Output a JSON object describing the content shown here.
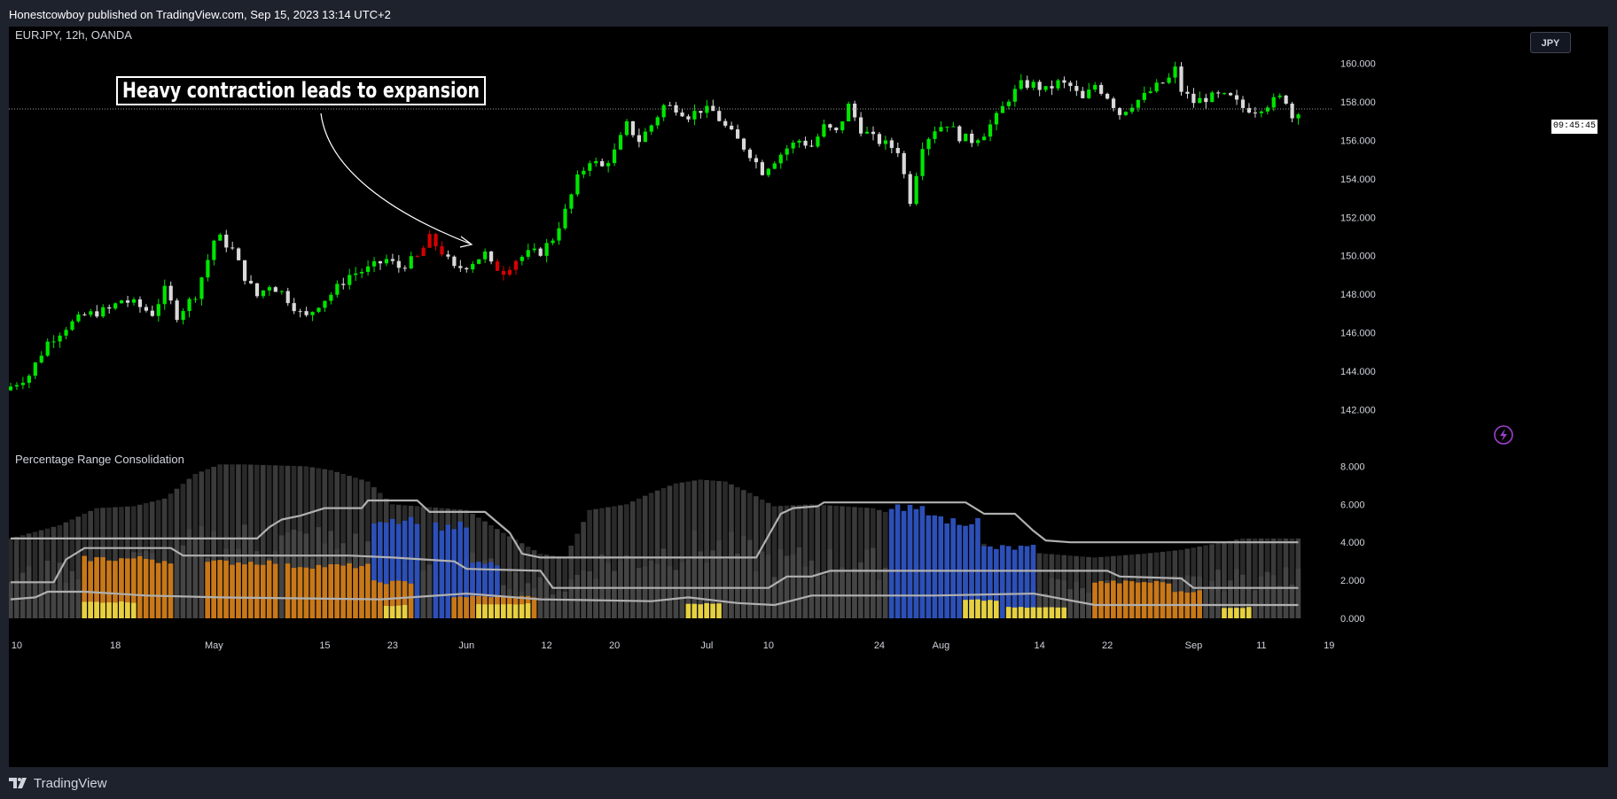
{
  "header": {
    "published": "Honestcowboy published on TradingView.com, Sep 15, 2023 13:14 UTC+2"
  },
  "footer": {
    "brand": "TradingView"
  },
  "chart": {
    "symbol_label": "EURJPY, 12h, OANDA",
    "currency_button": "JPY",
    "last_price_time": "09:45:45",
    "annotation": "Heavy contraction leads to expansion",
    "indicator_label": "Percentage Range Consolidation"
  },
  "colors": {
    "up": "#00e600",
    "down": "#d9d9d9",
    "highlight": "#d60000",
    "gray_bar": "#3a3a3a",
    "gray_bar_dark": "#2a2a2a",
    "blue": "#2c4fb8",
    "orange": "#c87818",
    "yellow": "#e6d040",
    "line": "#b0b0b0"
  },
  "chart_data": {
    "type": "candlestick",
    "title": "EURJPY, 12h, OANDA",
    "price_axis": {
      "ticks": [
        "160.000",
        "158.000",
        "156.000",
        "154.000",
        "152.000",
        "150.000",
        "148.000",
        "146.000",
        "144.000",
        "142.000"
      ],
      "range": [
        141.0,
        161.0
      ]
    },
    "indicator_axis": {
      "ticks": [
        "8.000",
        "6.000",
        "4.000",
        "2.000",
        "0.000"
      ],
      "range": [
        0,
        8.3
      ]
    },
    "time_axis": {
      "ticks": [
        {
          "label": "10",
          "i": 1
        },
        {
          "label": "18",
          "i": 17
        },
        {
          "label": "May",
          "i": 33
        },
        {
          "label": "15",
          "i": 51
        },
        {
          "label": "23",
          "i": 62
        },
        {
          "label": "Jun",
          "i": 74
        },
        {
          "label": "12",
          "i": 87
        },
        {
          "label": "20",
          "i": 98
        },
        {
          "label": "Jul",
          "i": 113
        },
        {
          "label": "10",
          "i": 123
        },
        {
          "label": "24",
          "i": 141
        },
        {
          "label": "Aug",
          "i": 151
        },
        {
          "label": "14",
          "i": 167
        },
        {
          "label": "22",
          "i": 178
        },
        {
          "label": "Sep",
          "i": 192
        },
        {
          "label": "11",
          "i": 203
        },
        {
          "label": "19",
          "i": 214
        }
      ],
      "candle_count": 210
    },
    "price_anchors": [
      [
        0,
        143.2
      ],
      [
        3,
        143.8
      ],
      [
        6,
        145.5
      ],
      [
        9,
        146.3
      ],
      [
        12,
        146.9
      ],
      [
        16,
        147.2
      ],
      [
        18,
        147.7
      ],
      [
        20,
        147.5
      ],
      [
        23,
        147.0
      ],
      [
        25,
        148.2
      ],
      [
        27,
        146.9
      ],
      [
        30,
        148.0
      ],
      [
        32,
        149.8
      ],
      [
        33,
        150.8
      ],
      [
        34,
        150.9
      ],
      [
        36,
        150.3
      ],
      [
        38,
        148.9
      ],
      [
        40,
        147.9
      ],
      [
        42,
        148.5
      ],
      [
        44,
        148.1
      ],
      [
        47,
        147.0
      ],
      [
        48,
        146.8
      ],
      [
        50,
        147.5
      ],
      [
        52,
        148.0
      ],
      [
        55,
        149.0
      ],
      [
        58,
        149.3
      ],
      [
        61,
        149.8
      ],
      [
        63,
        149.4
      ],
      [
        66,
        149.9
      ],
      [
        68,
        150.9
      ],
      [
        70,
        150.2
      ],
      [
        72,
        149.3
      ],
      [
        74,
        149.5
      ],
      [
        77,
        150.1
      ],
      [
        78,
        149.5
      ],
      [
        80,
        149.2
      ],
      [
        82,
        149.8
      ],
      [
        84,
        150.1
      ],
      [
        86,
        150.2
      ],
      [
        88,
        150.9
      ],
      [
        90,
        152.3
      ],
      [
        92,
        154.0
      ],
      [
        94,
        155.0
      ],
      [
        96,
        154.6
      ],
      [
        98,
        155.4
      ],
      [
        100,
        156.8
      ],
      [
        102,
        156.0
      ],
      [
        104,
        156.8
      ],
      [
        106,
        157.8
      ],
      [
        108,
        157.7
      ],
      [
        110,
        157.3
      ],
      [
        112,
        157.6
      ],
      [
        114,
        157.5
      ],
      [
        116,
        156.7
      ],
      [
        118,
        156.0
      ],
      [
        120,
        155.3
      ],
      [
        122,
        154.4
      ],
      [
        124,
        155.0
      ],
      [
        126,
        155.6
      ],
      [
        128,
        156.0
      ],
      [
        130,
        155.7
      ],
      [
        132,
        156.7
      ],
      [
        134,
        156.4
      ],
      [
        136,
        157.8
      ],
      [
        138,
        156.6
      ],
      [
        140,
        156.1
      ],
      [
        142,
        155.8
      ],
      [
        144,
        155.5
      ],
      [
        146,
        152.9
      ],
      [
        148,
        155.8
      ],
      [
        150,
        156.6
      ],
      [
        152,
        156.9
      ],
      [
        154,
        156.2
      ],
      [
        156,
        156.0
      ],
      [
        158,
        156.4
      ],
      [
        160,
        157.2
      ],
      [
        162,
        158.2
      ],
      [
        164,
        158.9
      ],
      [
        166,
        158.9
      ],
      [
        168,
        158.6
      ],
      [
        170,
        159.0
      ],
      [
        172,
        158.8
      ],
      [
        174,
        158.1
      ],
      [
        176,
        158.9
      ],
      [
        178,
        158.3
      ],
      [
        180,
        157.4
      ],
      [
        182,
        157.9
      ],
      [
        184,
        158.3
      ],
      [
        186,
        158.8
      ],
      [
        188,
        159.2
      ],
      [
        189,
        159.7
      ],
      [
        190,
        158.6
      ],
      [
        192,
        158.0
      ],
      [
        194,
        158.2
      ],
      [
        196,
        158.3
      ],
      [
        198,
        158.2
      ],
      [
        200,
        157.7
      ],
      [
        202,
        157.6
      ],
      [
        204,
        157.9
      ],
      [
        206,
        158.2
      ],
      [
        207,
        158.1
      ],
      [
        208,
        157.2
      ],
      [
        209,
        157.6
      ]
    ],
    "highlight_candles": [
      [
        66,
        70
      ],
      [
        79,
        82
      ]
    ],
    "consolidation_bars": {
      "background_level_anchors": [
        [
          0,
          4.2
        ],
        [
          8,
          4.9
        ],
        [
          14,
          5.8
        ],
        [
          20,
          5.9
        ],
        [
          25,
          6.3
        ],
        [
          30,
          7.6
        ],
        [
          34,
          8.1
        ],
        [
          38,
          8.1
        ],
        [
          48,
          8.0
        ],
        [
          52,
          7.8
        ],
        [
          58,
          7.2
        ],
        [
          62,
          6.0
        ],
        [
          74,
          5.7
        ],
        [
          80,
          4.5
        ],
        [
          86,
          3.4
        ],
        [
          90,
          3.2
        ],
        [
          94,
          5.7
        ],
        [
          100,
          6.0
        ],
        [
          104,
          6.6
        ],
        [
          108,
          7.1
        ],
        [
          112,
          7.3
        ],
        [
          116,
          7.2
        ],
        [
          120,
          6.6
        ],
        [
          124,
          5.9
        ],
        [
          130,
          6.0
        ],
        [
          140,
          5.8
        ],
        [
          146,
          5.2
        ],
        [
          152,
          4.9
        ],
        [
          160,
          3.6
        ],
        [
          168,
          3.4
        ],
        [
          176,
          3.2
        ],
        [
          184,
          3.4
        ],
        [
          190,
          3.6
        ],
        [
          200,
          4.2
        ],
        [
          209,
          4.2
        ]
      ],
      "blue_segments": [
        [
          59,
          66,
          5.5
        ],
        [
          69,
          74,
          5.1
        ],
        [
          75,
          79,
          3.0
        ],
        [
          143,
          150,
          6.0
        ],
        [
          151,
          157,
          5.4
        ],
        [
          158,
          166,
          3.9
        ]
      ],
      "orange_segments": [
        [
          12,
          23,
          3.3
        ],
        [
          24,
          26,
          3.2
        ],
        [
          32,
          43,
          3.1
        ],
        [
          45,
          58,
          2.9
        ],
        [
          59,
          65,
          2.0
        ],
        [
          72,
          85,
          1.2
        ],
        [
          176,
          188,
          2.0
        ],
        [
          188,
          193,
          1.5
        ]
      ],
      "yellow_segments": [
        [
          12,
          20,
          0.9
        ],
        [
          61,
          64,
          0.7
        ],
        [
          76,
          84,
          0.8
        ],
        [
          110,
          115,
          0.8
        ],
        [
          155,
          160,
          1.0
        ],
        [
          162,
          171,
          0.6
        ],
        [
          197,
          201,
          0.6
        ]
      ],
      "line_upper": [
        [
          0,
          4.2
        ],
        [
          40,
          4.2
        ],
        [
          42,
          4.8
        ],
        [
          44,
          5.2
        ],
        [
          47,
          5.4
        ],
        [
          51,
          5.8
        ],
        [
          57,
          5.8
        ],
        [
          58,
          6.2
        ],
        [
          66,
          6.2
        ],
        [
          68,
          5.6
        ],
        [
          77,
          5.6
        ],
        [
          81,
          4.5
        ],
        [
          83,
          3.4
        ],
        [
          86,
          3.2
        ],
        [
          121,
          3.2
        ],
        [
          125,
          5.5
        ],
        [
          127,
          5.8
        ],
        [
          131,
          5.9
        ],
        [
          132,
          6.1
        ],
        [
          155,
          6.1
        ],
        [
          158,
          5.5
        ],
        [
          163,
          5.5
        ],
        [
          166,
          4.6
        ],
        [
          168,
          4.1
        ],
        [
          172,
          4.0
        ],
        [
          205,
          4.0
        ],
        [
          209,
          4.0
        ]
      ],
      "line_middle": [
        [
          0,
          1.9
        ],
        [
          7,
          1.9
        ],
        [
          9,
          3.1
        ],
        [
          12,
          3.7
        ],
        [
          26,
          3.7
        ],
        [
          28,
          3.3
        ],
        [
          55,
          3.3
        ],
        [
          62,
          3.2
        ],
        [
          72,
          3.0
        ],
        [
          74,
          2.6
        ],
        [
          86,
          2.5
        ],
        [
          88,
          1.6
        ],
        [
          123,
          1.6
        ],
        [
          126,
          2.2
        ],
        [
          130,
          2.2
        ],
        [
          133,
          2.5
        ],
        [
          178,
          2.5
        ],
        [
          180,
          2.2
        ],
        [
          190,
          2.1
        ],
        [
          192,
          1.6
        ],
        [
          209,
          1.6
        ]
      ],
      "line_lower": [
        [
          0,
          1.0
        ],
        [
          4,
          1.1
        ],
        [
          6,
          1.4
        ],
        [
          12,
          1.4
        ],
        [
          22,
          1.2
        ],
        [
          34,
          1.1
        ],
        [
          60,
          1.0
        ],
        [
          74,
          1.3
        ],
        [
          86,
          1.0
        ],
        [
          104,
          0.9
        ],
        [
          110,
          1.1
        ],
        [
          118,
          0.8
        ],
        [
          124,
          0.7
        ],
        [
          130,
          1.2
        ],
        [
          150,
          1.2
        ],
        [
          166,
          1.3
        ],
        [
          176,
          0.7
        ],
        [
          209,
          0.7
        ]
      ]
    }
  }
}
